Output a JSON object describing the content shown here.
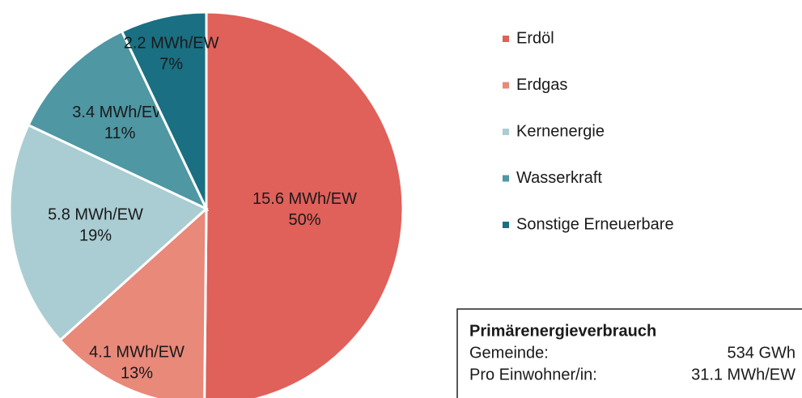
{
  "chart_data": {
    "type": "pie",
    "categories": [
      "Erdöl",
      "Erdgas",
      "Kernenergie",
      "Wasserkraft",
      "Sonstige Erneuerbare"
    ],
    "values": [
      15.6,
      4.1,
      5.8,
      3.4,
      2.2
    ],
    "value_labels": [
      "15.6 MWh/EW",
      "4.1 MWh/EW",
      "5.8 MWh/EW",
      "3.4 MWh/EW",
      "2.2 MWh/EW"
    ],
    "percent_labels": [
      "50%",
      "13%",
      "19%",
      "11%",
      "7%"
    ],
    "colors": [
      "#e0605a",
      "#e8897a",
      "#a9cdd3",
      "#4e97a3",
      "#1a6f82"
    ],
    "legend": "right",
    "info_box": {
      "title": "Primärenergieverbrauch",
      "rows": [
        [
          "Gemeinde:",
          "534 GWh"
        ],
        [
          "Pro Einwohner/in:",
          "31.1 MWh/EW"
        ]
      ]
    }
  }
}
